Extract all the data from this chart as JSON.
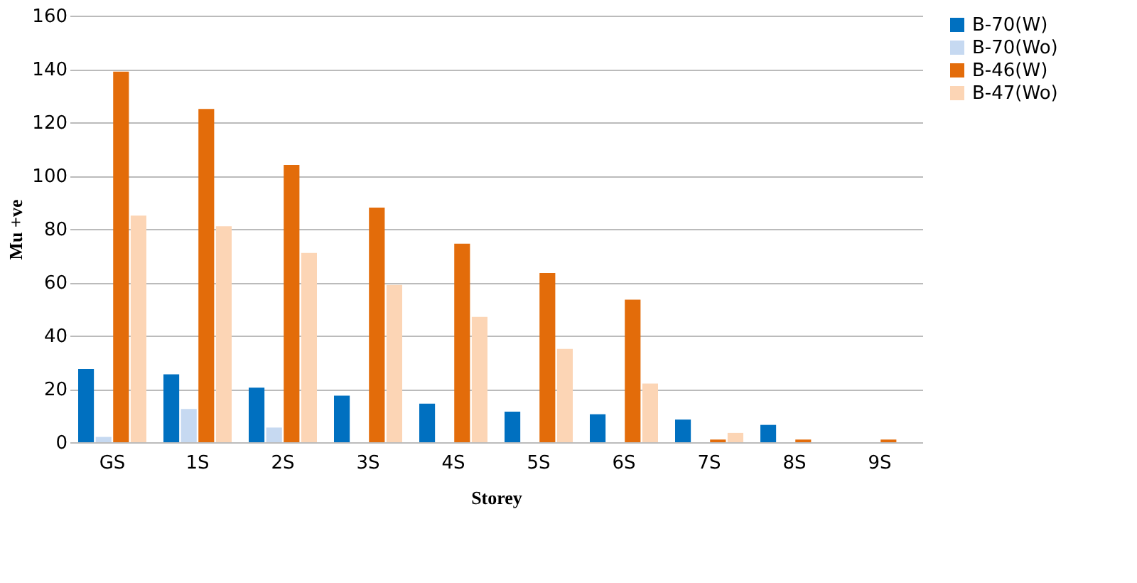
{
  "chart_data": {
    "type": "bar",
    "xlabel": "Storey",
    "ylabel": "Mu +ve",
    "categories": [
      "GS",
      "1S",
      "2S",
      "3S",
      "4S",
      "5S",
      "6S",
      "7S",
      "8S",
      "9S"
    ],
    "series": [
      {
        "name": "B-70(W)",
        "color": "#0070c0",
        "values": [
          27.5,
          25.5,
          20.5,
          17.5,
          14.5,
          11.5,
          10.5,
          8.5,
          6.5,
          0
        ]
      },
      {
        "name": "B-70(Wo)",
        "color": "#c6d9f1",
        "values": [
          2,
          12.5,
          5.5,
          null,
          0,
          0,
          0,
          0,
          null,
          null
        ]
      },
      {
        "name": "B-46(W)",
        "color": "#e36c0a",
        "values": [
          139,
          125,
          104,
          88,
          74.5,
          63.5,
          53.5,
          1,
          1,
          1
        ]
      },
      {
        "name": "B-47(Wo)",
        "color": "#fcd5b5",
        "values": [
          85,
          81,
          71,
          59,
          47,
          35,
          22,
          3.5,
          0,
          0
        ]
      }
    ],
    "ylim": [
      0,
      160
    ],
    "yticks": [
      0,
      20,
      40,
      60,
      80,
      100,
      120,
      140,
      160
    ],
    "grid": "y",
    "legend": "right"
  }
}
